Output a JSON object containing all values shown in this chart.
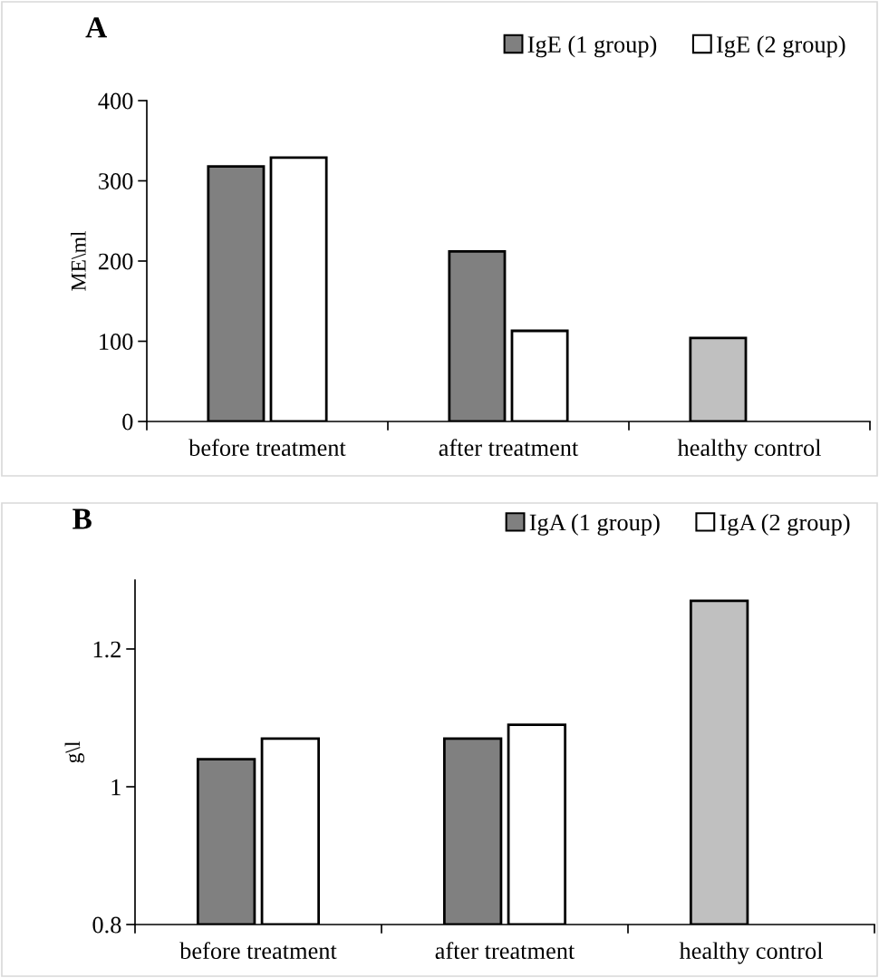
{
  "chart_data": [
    {
      "type": "bar",
      "annotations": [
        "A"
      ],
      "ylabel": "ME\\ml",
      "categories": [
        "before treatment",
        "after treatment",
        "healthy control"
      ],
      "series": [
        {
          "name": "IgE (1 group)",
          "color": "#808080",
          "colors": [
            "#808080",
            "#808080",
            "#c0c0c0"
          ],
          "values": [
            318,
            212,
            104
          ]
        },
        {
          "name": "IgE (2 group)",
          "color": "#ffffff",
          "values": [
            329,
            113,
            null
          ]
        }
      ],
      "ylim": [
        0,
        400
      ],
      "yticks": [
        0,
        100,
        200,
        300,
        400
      ],
      "grid": false,
      "legend": "top right"
    },
    {
      "type": "bar",
      "annotations": [
        "B"
      ],
      "ylabel": "g\\l",
      "categories": [
        "before treatment",
        "after treatment",
        "healthy control"
      ],
      "series": [
        {
          "name": "IgA (1 group)",
          "color": "#808080",
          "colors": [
            "#808080",
            "#808080",
            "#c0c0c0"
          ],
          "values": [
            1.04,
            1.07,
            1.27
          ]
        },
        {
          "name": "IgA (2 group)",
          "color": "#ffffff",
          "values": [
            1.07,
            1.09,
            null
          ]
        }
      ],
      "ylim": [
        0.8,
        1.3
      ],
      "yticks": [
        0.8,
        1,
        1.2
      ],
      "grid": false,
      "legend": "top right"
    }
  ]
}
